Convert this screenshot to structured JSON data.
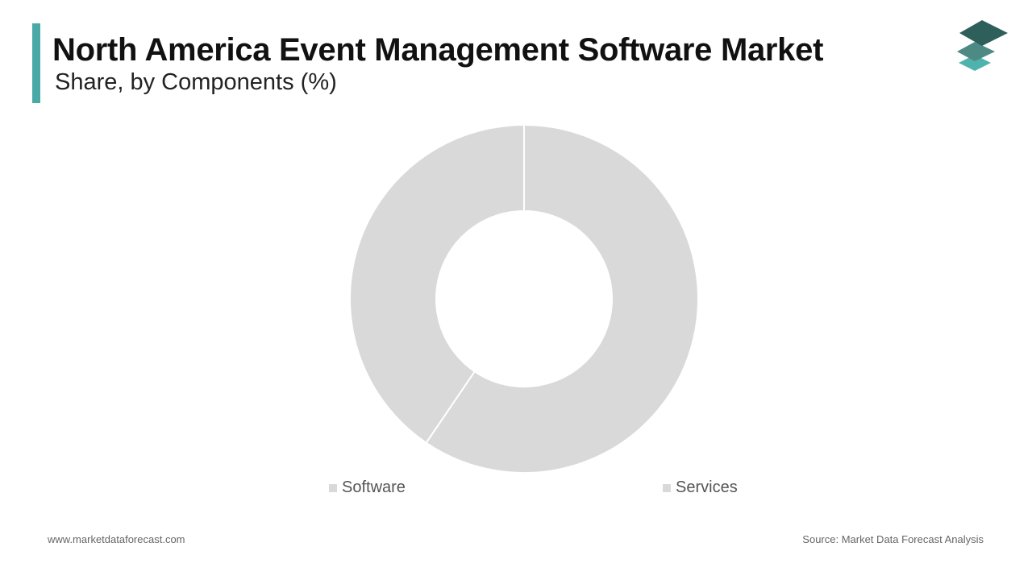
{
  "header": {
    "title": "North America Event Management Software Market",
    "subtitle": "Share, by Components (%)"
  },
  "chart_data": {
    "type": "pie",
    "style": "donut",
    "title": "North America Event Management Software Market",
    "subtitle": "Share, by Components (%)",
    "categories": [
      "Software",
      "Services"
    ],
    "values": [
      59.5,
      40.5
    ],
    "colors": [
      "#d9d9d9",
      "#d9d9d9"
    ],
    "legend_position": "bottom"
  },
  "footer": {
    "website": "www.marketdataforecast.com",
    "source": "Source: Market Data Forecast Analysis"
  },
  "colors": {
    "accent": "#4aa9a6",
    "logo_top": "#2f5f5a",
    "logo_mid": "#4e8a84",
    "logo_bottom": "#4fb3ad"
  },
  "icons": {
    "logo": "stacked-layers-icon"
  }
}
